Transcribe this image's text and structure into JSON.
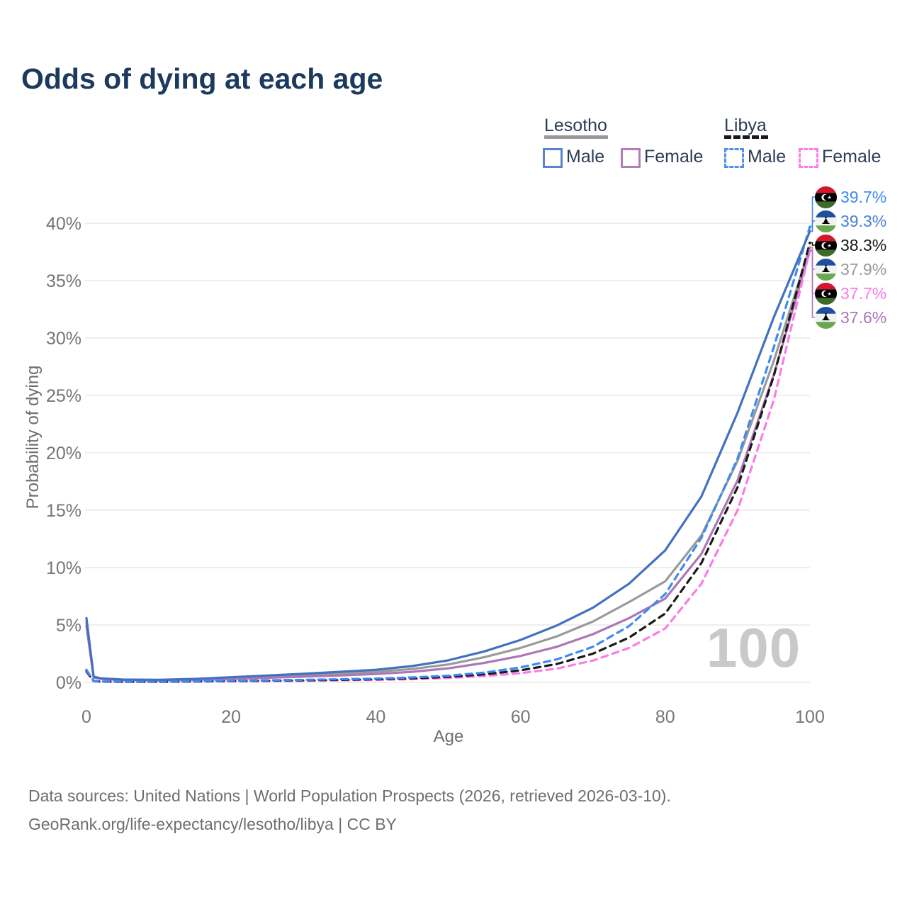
{
  "title": "Odds of dying at each age",
  "legend": {
    "lesotho": {
      "title": "Lesotho",
      "male": "Male",
      "female": "Female",
      "line_style": "solid",
      "underline_color": "#9a9a9a"
    },
    "libya": {
      "title": "Libya",
      "male": "Male",
      "female": "Female",
      "line_style": "dashed",
      "underline_color": "#1a1a1a"
    }
  },
  "axes": {
    "y_title": "Probability of dying",
    "x_title": "Age"
  },
  "watermark": "100",
  "end_labels": [
    {
      "flag": "libya",
      "value": "39.7%",
      "color": "#3f8af2",
      "series": "libya_male"
    },
    {
      "flag": "lesotho",
      "value": "39.3%",
      "color": "#4a7fd1",
      "series": "lesotho_male"
    },
    {
      "flag": "libya",
      "value": "38.3%",
      "color": "#1a1a1a",
      "series": "libya_both"
    },
    {
      "flag": "lesotho",
      "value": "37.9%",
      "color": "#9a9a9a",
      "series": "lesotho_both"
    },
    {
      "flag": "libya",
      "value": "37.7%",
      "color": "#fb7ce8",
      "series": "libya_female"
    },
    {
      "flag": "lesotho",
      "value": "37.6%",
      "color": "#ab77b5",
      "series": "lesotho_female"
    }
  ],
  "sources": {
    "line1": "Data sources: United Nations | World Population Prospects (2026, retrieved 2026-03-10).",
    "line2": "GeoRank.org/life-expectancy/lesotho/libya | CC BY"
  },
  "chart_data": {
    "type": "line",
    "title": "Odds of dying at each age",
    "xlabel": "Age",
    "ylabel": "Probability of dying",
    "xlim": [
      0,
      100
    ],
    "ylim_percent": [
      0,
      42
    ],
    "grid": "horizontal",
    "legend_position": "top-right",
    "x_ticks": [
      {
        "value": 0,
        "label": "0"
      },
      {
        "value": 20,
        "label": "20"
      },
      {
        "value": 40,
        "label": "40"
      },
      {
        "value": 60,
        "label": "60"
      },
      {
        "value": 80,
        "label": "80"
      },
      {
        "value": 100,
        "label": "100"
      }
    ],
    "y_ticks": [
      {
        "value": 0,
        "label": "0%"
      },
      {
        "value": 5,
        "label": "5%"
      },
      {
        "value": 10,
        "label": "10%"
      },
      {
        "value": 15,
        "label": "15%"
      },
      {
        "value": 20,
        "label": "20%"
      },
      {
        "value": 25,
        "label": "25%"
      },
      {
        "value": 30,
        "label": "30%"
      },
      {
        "value": 35,
        "label": "35%"
      },
      {
        "value": 40,
        "label": "40%"
      }
    ],
    "ages": [
      0,
      1,
      2,
      5,
      10,
      15,
      20,
      25,
      30,
      35,
      40,
      45,
      50,
      55,
      60,
      65,
      70,
      75,
      80,
      85,
      90,
      95,
      100
    ],
    "series": [
      {
        "id": "lesotho_both",
        "name": "Lesotho Both sexes",
        "country": "Lesotho",
        "sex": "both",
        "color": "#9a9a9a",
        "dash": false,
        "values_percent": [
          5.25,
          0.46,
          0.32,
          0.22,
          0.2,
          0.26,
          0.38,
          0.5,
          0.62,
          0.76,
          0.92,
          1.16,
          1.56,
          2.2,
          3.0,
          4.0,
          5.3,
          7.0,
          8.8,
          12.8,
          19.3,
          28.0,
          37.9
        ],
        "end_label": "37.9%"
      },
      {
        "id": "lesotho_female",
        "name": "Lesotho Female",
        "country": "Lesotho",
        "sex": "female",
        "color": "#ab77b5",
        "dash": false,
        "values_percent": [
          4.9,
          0.42,
          0.3,
          0.2,
          0.18,
          0.22,
          0.3,
          0.4,
          0.5,
          0.6,
          0.73,
          0.92,
          1.22,
          1.7,
          2.3,
          3.1,
          4.2,
          5.6,
          7.3,
          11.2,
          17.6,
          26.8,
          37.6
        ],
        "end_label": "37.6%"
      },
      {
        "id": "libya_female",
        "name": "Libya Female",
        "country": "Libya",
        "sex": "female",
        "color": "#fb7ce8",
        "dash": true,
        "values_percent": [
          0.9,
          0.1,
          0.06,
          0.05,
          0.05,
          0.07,
          0.1,
          0.12,
          0.15,
          0.18,
          0.22,
          0.28,
          0.38,
          0.55,
          0.8,
          1.2,
          1.9,
          3.0,
          4.7,
          8.6,
          15.0,
          24.6,
          37.7
        ],
        "end_label": "37.7%"
      },
      {
        "id": "libya_both",
        "name": "Libya Both sexes",
        "country": "Libya",
        "sex": "both",
        "color": "#1a1a1a",
        "dash": true,
        "values_percent": [
          1.0,
          0.11,
          0.07,
          0.05,
          0.05,
          0.08,
          0.12,
          0.15,
          0.18,
          0.22,
          0.27,
          0.35,
          0.48,
          0.7,
          1.05,
          1.6,
          2.5,
          3.9,
          6.0,
          10.4,
          17.0,
          26.7,
          38.3
        ],
        "end_label": "38.3%"
      },
      {
        "id": "libya_male",
        "name": "Libya Male",
        "country": "Libya",
        "sex": "male",
        "color": "#3f8af2",
        "dash": true,
        "values_percent": [
          1.1,
          0.12,
          0.08,
          0.06,
          0.06,
          0.1,
          0.15,
          0.18,
          0.22,
          0.27,
          0.33,
          0.43,
          0.58,
          0.85,
          1.3,
          2.0,
          3.1,
          4.9,
          7.7,
          12.6,
          19.5,
          29.2,
          39.7
        ],
        "end_label": "39.7%"
      },
      {
        "id": "lesotho_male",
        "name": "Lesotho Male",
        "country": "Lesotho",
        "sex": "male",
        "color": "#4271c0",
        "dash": false,
        "values_percent": [
          5.6,
          0.5,
          0.35,
          0.25,
          0.22,
          0.3,
          0.45,
          0.6,
          0.75,
          0.92,
          1.1,
          1.42,
          1.92,
          2.7,
          3.7,
          4.95,
          6.5,
          8.6,
          11.5,
          16.2,
          23.5,
          31.8,
          39.3
        ],
        "end_label": "39.3%"
      }
    ]
  }
}
